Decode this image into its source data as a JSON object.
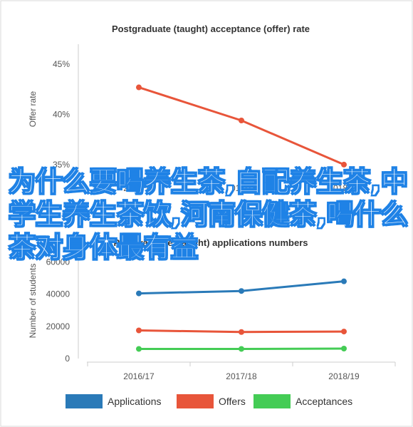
{
  "chart_data": [
    {
      "type": "line",
      "title": "Postgraduate (taught) acceptance (offer) rate",
      "ylabel": "Offer rate",
      "xlabel": "",
      "categories": [
        "2016/17",
        "2017/18",
        "2018/19"
      ],
      "series": [
        {
          "values": [
            42.7,
            39.4,
            35.0
          ],
          "color": "#e8553a"
        }
      ],
      "ylim": [
        34,
        47
      ],
      "yticks": [
        "35%",
        "40%",
        "45%"
      ],
      "ytick_values": [
        35,
        40,
        45
      ],
      "grid": false
    },
    {
      "type": "line",
      "title": "Postgraduate (taught) applications numbers",
      "ylabel": "Number of students",
      "xlabel": "",
      "categories": [
        "2016/17",
        "2017/18",
        "2018/19"
      ],
      "series": [
        {
          "name": "Applications",
          "values": [
            40500,
            42000,
            48000
          ],
          "color": "#2a7ab8"
        },
        {
          "name": "Offers",
          "values": [
            17500,
            16500,
            16800
          ],
          "color": "#e8553a"
        },
        {
          "name": "Acceptances",
          "values": [
            6000,
            6000,
            6200
          ],
          "color": "#44cc55"
        }
      ],
      "ylim": [
        0,
        70000
      ],
      "yticks": [
        "0",
        "20000",
        "40000",
        "60000"
      ],
      "ytick_values": [
        0,
        20000,
        40000,
        60000
      ],
      "legend": "bottom",
      "grid": false
    }
  ],
  "overlay_text": "为什么要喝养生茶,自配养生茶,中学生养生茶饮,河南保健茶,喝什么茶对身体最有益"
}
